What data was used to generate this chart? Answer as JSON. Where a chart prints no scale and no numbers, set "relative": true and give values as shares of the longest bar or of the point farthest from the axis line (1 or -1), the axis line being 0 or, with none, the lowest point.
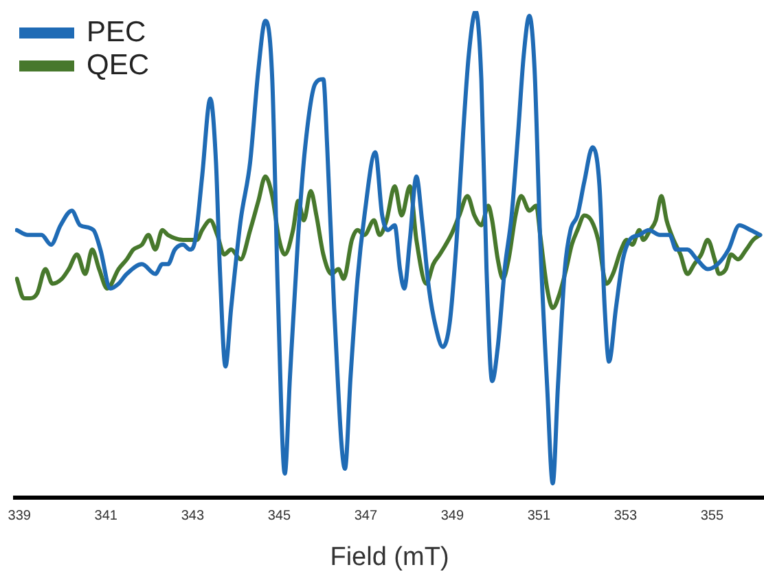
{
  "chart_data": {
    "type": "line",
    "xlabel": "Field (mT)",
    "relative": true,
    "xlim": [
      338.9,
      356.2
    ],
    "xticks": [
      339,
      341,
      343,
      345,
      347,
      349,
      351,
      353,
      355
    ],
    "legend": "top left",
    "marker": "none",
    "series": [
      {
        "name": "PEC",
        "color": "#1f6bb5",
        "x": [
          338.94,
          339.19,
          339.51,
          339.73,
          339.95,
          340.21,
          340.4,
          340.71,
          340.87,
          341.1,
          341.29,
          341.48,
          341.83,
          342.14,
          342.3,
          342.43,
          342.59,
          342.78,
          342.94,
          343.06,
          343.22,
          343.41,
          343.54,
          343.63,
          343.76,
          343.89,
          344.11,
          344.33,
          344.52,
          344.68,
          344.84,
          344.97,
          345.13,
          345.25,
          345.44,
          345.6,
          345.83,
          346.02,
          346.11,
          346.27,
          346.52,
          346.65,
          346.81,
          346.97,
          347.22,
          347.38,
          347.51,
          347.67,
          347.79,
          347.89,
          348.02,
          348.17,
          348.3,
          348.46,
          348.62,
          348.78,
          348.94,
          349.1,
          349.25,
          349.38,
          349.54,
          349.67,
          349.79,
          349.92,
          350.05,
          350.21,
          350.37,
          350.52,
          350.65,
          350.78,
          350.9,
          351.03,
          351.19,
          351.32,
          351.44,
          351.6,
          351.73,
          351.89,
          352.05,
          352.24,
          352.4,
          352.52,
          352.62,
          352.78,
          352.94,
          353.1,
          353.32,
          353.54,
          353.79,
          354.02,
          354.17,
          354.43,
          354.65,
          354.9,
          355.13,
          355.38,
          355.63,
          355.89,
          356.11
        ],
        "values": [
          0.55,
          0.54,
          0.54,
          0.52,
          0.56,
          0.59,
          0.56,
          0.55,
          0.51,
          0.43,
          0.44,
          0.46,
          0.48,
          0.46,
          0.48,
          0.48,
          0.51,
          0.52,
          0.51,
          0.53,
          0.66,
          0.82,
          0.69,
          0.47,
          0.27,
          0.39,
          0.57,
          0.69,
          0.88,
          0.98,
          0.86,
          0.42,
          0.05,
          0.25,
          0.54,
          0.72,
          0.85,
          0.86,
          0.72,
          0.39,
          0.06,
          0.25,
          0.45,
          0.58,
          0.71,
          0.58,
          0.55,
          0.56,
          0.47,
          0.43,
          0.53,
          0.66,
          0.57,
          0.43,
          0.35,
          0.31,
          0.36,
          0.53,
          0.75,
          0.91,
          1,
          0.86,
          0.47,
          0.24,
          0.31,
          0.47,
          0.58,
          0.75,
          0.91,
          0.99,
          0.88,
          0.53,
          0.23,
          0.03,
          0.23,
          0.47,
          0.55,
          0.58,
          0.65,
          0.72,
          0.64,
          0.39,
          0.28,
          0.39,
          0.49,
          0.53,
          0.54,
          0.55,
          0.54,
          0.54,
          0.51,
          0.51,
          0.49,
          0.47,
          0.48,
          0.51,
          0.56,
          0.55,
          0.54
        ]
      },
      {
        "name": "QEC",
        "color": "#47782c",
        "x": [
          338.94,
          339.1,
          339.25,
          339.41,
          339.6,
          339.76,
          339.98,
          340.14,
          340.33,
          340.52,
          340.68,
          340.84,
          341.03,
          341.29,
          341.48,
          341.63,
          341.83,
          341.98,
          342.14,
          342.3,
          342.43,
          342.78,
          343.1,
          343.22,
          343.41,
          343.57,
          343.73,
          343.89,
          344.11,
          344.33,
          344.52,
          344.68,
          344.84,
          345.0,
          345.13,
          345.32,
          345.44,
          345.57,
          345.73,
          345.86,
          346.02,
          346.21,
          346.37,
          346.49,
          346.68,
          346.81,
          346.97,
          347.19,
          347.32,
          347.48,
          347.67,
          347.83,
          348.02,
          348.17,
          348.4,
          348.56,
          348.71,
          348.97,
          349.16,
          349.35,
          349.51,
          349.67,
          349.83,
          349.92,
          350.05,
          350.17,
          350.3,
          350.46,
          350.59,
          350.78,
          350.94,
          351.03,
          351.19,
          351.32,
          351.48,
          351.63,
          351.76,
          351.89,
          352.05,
          352.21,
          352.37,
          352.56,
          352.71,
          352.9,
          353.03,
          353.16,
          353.32,
          353.41,
          353.57,
          353.7,
          353.83,
          353.95,
          354.11,
          354.27,
          354.43,
          354.59,
          354.75,
          354.9,
          355.06,
          355.16,
          355.32,
          355.44,
          355.6,
          355.79,
          355.95,
          356.11
        ],
        "values": [
          0.45,
          0.41,
          0.41,
          0.42,
          0.47,
          0.44,
          0.45,
          0.47,
          0.5,
          0.46,
          0.51,
          0.47,
          0.43,
          0.47,
          0.49,
          0.51,
          0.52,
          0.54,
          0.51,
          0.55,
          0.54,
          0.53,
          0.53,
          0.55,
          0.57,
          0.54,
          0.5,
          0.51,
          0.49,
          0.55,
          0.61,
          0.66,
          0.62,
          0.53,
          0.5,
          0.55,
          0.61,
          0.57,
          0.63,
          0.58,
          0.5,
          0.46,
          0.47,
          0.45,
          0.53,
          0.55,
          0.54,
          0.57,
          0.54,
          0.57,
          0.64,
          0.58,
          0.64,
          0.53,
          0.44,
          0.48,
          0.5,
          0.54,
          0.58,
          0.62,
          0.58,
          0.56,
          0.6,
          0.57,
          0.49,
          0.45,
          0.49,
          0.58,
          0.62,
          0.59,
          0.6,
          0.54,
          0.43,
          0.39,
          0.42,
          0.47,
          0.52,
          0.55,
          0.58,
          0.57,
          0.53,
          0.44,
          0.46,
          0.51,
          0.53,
          0.52,
          0.55,
          0.53,
          0.55,
          0.57,
          0.62,
          0.57,
          0.53,
          0.5,
          0.46,
          0.48,
          0.5,
          0.53,
          0.49,
          0.46,
          0.47,
          0.5,
          0.49,
          0.51,
          0.53,
          0.54
        ]
      }
    ]
  }
}
